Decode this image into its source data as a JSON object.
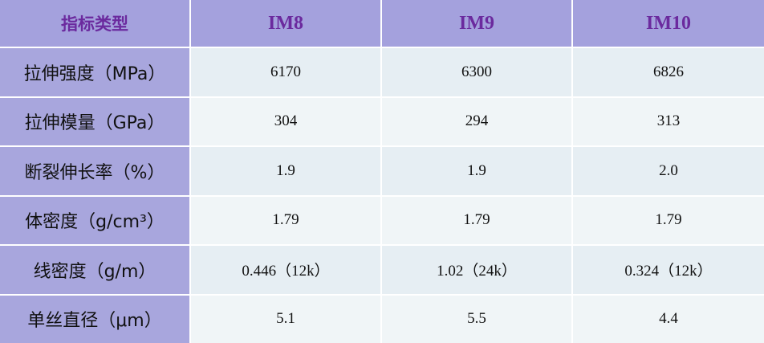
{
  "table": {
    "header": [
      "指标类型",
      "IM8",
      "IM9",
      "IM10"
    ],
    "rows": [
      [
        "拉伸强度（MPa）",
        "6170",
        "6300",
        "6826"
      ],
      [
        "拉伸模量（GPa）",
        "304",
        "294",
        "313"
      ],
      [
        "断裂伸长率（%）",
        "1.9",
        "1.9",
        "2.0"
      ],
      [
        "体密度（g/cm³）",
        "1.79",
        "1.79",
        "1.79"
      ],
      [
        "线密度（g/m）",
        "0.446（12k）",
        "1.02（24k）",
        "0.324（12k）"
      ],
      [
        "单丝直径（μm）",
        "5.1",
        "5.5",
        "4.4"
      ]
    ]
  }
}
